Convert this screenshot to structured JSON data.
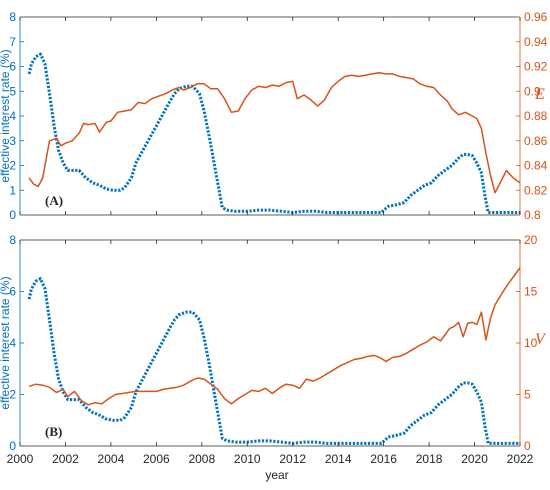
{
  "colors": {
    "rate": "#0072BD",
    "right": "#D95319",
    "axis": "#262626",
    "rateAxis": "#0072BD",
    "rightAxis": "#D95319"
  },
  "chart_data": [
    {
      "type": "line",
      "panel_label": "(A)",
      "xlabel": "",
      "ylabel_left": "effective interest rate (%)",
      "ylabel_right": "E",
      "xlim": [
        2000,
        2022
      ],
      "ylim_left": [
        0,
        8
      ],
      "ylim_right": [
        0.8,
        0.96
      ],
      "x_ticks": [
        2000,
        2002,
        2004,
        2006,
        2008,
        2010,
        2012,
        2014,
        2016,
        2018,
        2020,
        2022
      ],
      "yticks_left": [
        "0",
        "1",
        "2",
        "3",
        "4",
        "5",
        "6",
        "7",
        "8"
      ],
      "yticks_right": [
        "0.8",
        "0.82",
        "0.84",
        "0.86",
        "0.88",
        "0.9",
        "0.92",
        "0.94",
        "0.96"
      ],
      "series": [
        {
          "axis": "left",
          "style": "dotted",
          "x": [
            2000.4,
            2000.5,
            2000.7,
            2000.9,
            2001.1,
            2001.3,
            2001.5,
            2001.7,
            2001.9,
            2002.1,
            2002.3,
            2002.6,
            2002.9,
            2003.2,
            2003.5,
            2003.8,
            2004.1,
            2004.4,
            2004.6,
            2004.9,
            2005.1,
            2005.4,
            2005.7,
            2006.0,
            2006.3,
            2006.6,
            2006.8,
            2007.0,
            2007.3,
            2007.6,
            2007.9,
            2008.1,
            2008.3,
            2008.5,
            2008.7,
            2008.9,
            2009.1,
            2009.5,
            2010.0,
            2010.5,
            2011.0,
            2011.5,
            2012.0,
            2012.5,
            2013.0,
            2013.5,
            2014.0,
            2014.5,
            2015.0,
            2015.5,
            2015.9,
            2016.2,
            2016.5,
            2016.9,
            2017.2,
            2017.5,
            2017.8,
            2018.1,
            2018.4,
            2018.7,
            2019.0,
            2019.3,
            2019.5,
            2019.7,
            2019.9,
            2020.1,
            2020.3,
            2020.45,
            2020.6,
            2021.0,
            2021.5,
            2022.0
          ],
          "y": [
            5.7,
            6.1,
            6.4,
            6.5,
            6.1,
            4.9,
            3.6,
            2.6,
            2.1,
            1.8,
            1.8,
            1.8,
            1.5,
            1.3,
            1.2,
            1.05,
            1.0,
            1.0,
            1.1,
            1.5,
            2.1,
            2.6,
            3.1,
            3.6,
            4.1,
            4.6,
            4.9,
            5.1,
            5.2,
            5.2,
            4.9,
            4.2,
            3.3,
            2.3,
            1.3,
            0.3,
            0.2,
            0.15,
            0.15,
            0.2,
            0.2,
            0.15,
            0.1,
            0.15,
            0.15,
            0.1,
            0.1,
            0.1,
            0.1,
            0.1,
            0.1,
            0.35,
            0.4,
            0.5,
            0.8,
            1.0,
            1.2,
            1.3,
            1.6,
            1.8,
            2.0,
            2.3,
            2.45,
            2.45,
            2.4,
            2.1,
            1.7,
            0.8,
            0.1,
            0.1,
            0.1,
            0.1
          ]
        },
        {
          "axis": "right",
          "style": "solid",
          "x": [
            2000.4,
            2000.6,
            2000.8,
            2001.0,
            2001.3,
            2001.6,
            2001.8,
            2002.0,
            2002.3,
            2002.6,
            2002.8,
            2003.0,
            2003.3,
            2003.5,
            2003.8,
            2004.0,
            2004.3,
            2004.6,
            2004.9,
            2005.2,
            2005.5,
            2005.8,
            2006.1,
            2006.4,
            2006.7,
            2007.0,
            2007.2,
            2007.5,
            2007.8,
            2008.1,
            2008.4,
            2008.7,
            2009.0,
            2009.3,
            2009.6,
            2009.9,
            2010.2,
            2010.5,
            2010.8,
            2011.1,
            2011.4,
            2011.7,
            2012.0,
            2012.2,
            2012.5,
            2012.8,
            2013.1,
            2013.4,
            2013.7,
            2014.0,
            2014.3,
            2014.6,
            2014.9,
            2015.2,
            2015.5,
            2015.8,
            2016.1,
            2016.4,
            2016.7,
            2017.0,
            2017.3,
            2017.6,
            2017.9,
            2018.2,
            2018.5,
            2018.8,
            2019.0,
            2019.3,
            2019.6,
            2019.9,
            2020.1,
            2020.3,
            2020.5,
            2020.7,
            2020.9,
            2021.1,
            2021.4,
            2021.7,
            2022.0
          ],
          "y": [
            0.83,
            0.825,
            0.823,
            0.83,
            0.86,
            0.862,
            0.856,
            0.858,
            0.86,
            0.866,
            0.874,
            0.873,
            0.874,
            0.867,
            0.875,
            0.876,
            0.883,
            0.884,
            0.885,
            0.891,
            0.89,
            0.894,
            0.896,
            0.898,
            0.901,
            0.903,
            0.901,
            0.903,
            0.906,
            0.906,
            0.902,
            0.902,
            0.894,
            0.883,
            0.884,
            0.894,
            0.901,
            0.904,
            0.903,
            0.905,
            0.904,
            0.907,
            0.908,
            0.894,
            0.897,
            0.893,
            0.888,
            0.893,
            0.903,
            0.908,
            0.912,
            0.913,
            0.912,
            0.913,
            0.914,
            0.915,
            0.914,
            0.914,
            0.912,
            0.911,
            0.91,
            0.906,
            0.904,
            0.903,
            0.897,
            0.892,
            0.886,
            0.881,
            0.883,
            0.88,
            0.878,
            0.87,
            0.85,
            0.832,
            0.818,
            0.825,
            0.836,
            0.83,
            0.826
          ]
        }
      ]
    },
    {
      "type": "line",
      "panel_label": "(B)",
      "xlabel": "year",
      "ylabel_left": "effective interest rate (%)",
      "ylabel_right": "V",
      "xlim": [
        2000,
        2022
      ],
      "ylim_left": [
        0,
        8
      ],
      "ylim_right": [
        0,
        20
      ],
      "x_ticks": [
        2000,
        2002,
        2004,
        2006,
        2008,
        2010,
        2012,
        2014,
        2016,
        2018,
        2020,
        2022
      ],
      "xticks_labels": [
        "2000",
        "2002",
        "2004",
        "2006",
        "2008",
        "2010",
        "2012",
        "2014",
        "2016",
        "2018",
        "2020",
        "2022"
      ],
      "yticks_left": [
        "0",
        "2",
        "4",
        "6",
        "8"
      ],
      "yticks_right": [
        "0",
        "5",
        "10",
        "15",
        "20"
      ],
      "series": [
        {
          "axis": "left",
          "style": "dotted",
          "x": [
            2000.4,
            2000.5,
            2000.7,
            2000.9,
            2001.1,
            2001.3,
            2001.5,
            2001.7,
            2001.9,
            2002.1,
            2002.3,
            2002.6,
            2002.9,
            2003.2,
            2003.5,
            2003.8,
            2004.1,
            2004.4,
            2004.6,
            2004.9,
            2005.1,
            2005.4,
            2005.7,
            2006.0,
            2006.3,
            2006.6,
            2006.8,
            2007.0,
            2007.3,
            2007.6,
            2007.9,
            2008.1,
            2008.3,
            2008.5,
            2008.7,
            2008.9,
            2009.1,
            2009.5,
            2010.0,
            2010.5,
            2011.0,
            2011.5,
            2012.0,
            2012.5,
            2013.0,
            2013.5,
            2014.0,
            2014.5,
            2015.0,
            2015.5,
            2015.9,
            2016.2,
            2016.5,
            2016.9,
            2017.2,
            2017.5,
            2017.8,
            2018.1,
            2018.4,
            2018.7,
            2019.0,
            2019.3,
            2019.5,
            2019.7,
            2019.9,
            2020.1,
            2020.3,
            2020.45,
            2020.6,
            2021.0,
            2021.5,
            2022.0
          ],
          "y": [
            5.7,
            6.1,
            6.4,
            6.5,
            6.1,
            4.9,
            3.6,
            2.6,
            2.1,
            1.8,
            1.8,
            1.8,
            1.5,
            1.3,
            1.2,
            1.05,
            1.0,
            1.0,
            1.1,
            1.5,
            2.1,
            2.6,
            3.1,
            3.6,
            4.1,
            4.6,
            4.9,
            5.1,
            5.2,
            5.2,
            4.9,
            4.2,
            3.3,
            2.3,
            1.3,
            0.3,
            0.2,
            0.15,
            0.15,
            0.2,
            0.2,
            0.15,
            0.1,
            0.15,
            0.15,
            0.1,
            0.1,
            0.1,
            0.1,
            0.1,
            0.1,
            0.35,
            0.4,
            0.5,
            0.8,
            1.0,
            1.2,
            1.3,
            1.6,
            1.8,
            2.0,
            2.3,
            2.45,
            2.45,
            2.4,
            2.1,
            1.7,
            0.8,
            0.1,
            0.1,
            0.1,
            0.1
          ]
        },
        {
          "axis": "right",
          "style": "solid",
          "x": [
            2000.4,
            2000.7,
            2001.0,
            2001.3,
            2001.6,
            2001.9,
            2002.1,
            2002.4,
            2002.7,
            2003.0,
            2003.3,
            2003.6,
            2003.9,
            2004.2,
            2004.5,
            2004.8,
            2005.1,
            2005.4,
            2005.7,
            2006.0,
            2006.3,
            2006.6,
            2006.9,
            2007.2,
            2007.5,
            2007.8,
            2008.1,
            2008.4,
            2008.7,
            2009.0,
            2009.3,
            2009.6,
            2009.9,
            2010.2,
            2010.5,
            2010.8,
            2011.1,
            2011.4,
            2011.7,
            2012.0,
            2012.3,
            2012.6,
            2012.9,
            2013.2,
            2013.5,
            2013.8,
            2014.1,
            2014.4,
            2014.7,
            2015.0,
            2015.3,
            2015.6,
            2015.9,
            2016.1,
            2016.4,
            2016.7,
            2017.0,
            2017.3,
            2017.6,
            2017.9,
            2018.2,
            2018.5,
            2018.7,
            2018.9,
            2019.1,
            2019.3,
            2019.5,
            2019.7,
            2019.9,
            2020.1,
            2020.3,
            2020.5,
            2020.7,
            2020.9,
            2021.2,
            2021.5,
            2021.8,
            2022.0
          ],
          "y": [
            5.8,
            6.0,
            5.9,
            5.7,
            5.2,
            5.5,
            4.8,
            5.3,
            4.4,
            4.0,
            4.2,
            4.1,
            4.6,
            5.0,
            5.1,
            5.2,
            5.3,
            5.3,
            5.3,
            5.3,
            5.5,
            5.6,
            5.7,
            5.9,
            6.3,
            6.6,
            6.5,
            6.0,
            5.5,
            4.6,
            4.1,
            4.6,
            5.0,
            5.4,
            5.3,
            5.6,
            5.1,
            5.6,
            6.0,
            5.9,
            5.6,
            6.5,
            6.3,
            6.6,
            7.0,
            7.4,
            7.8,
            8.1,
            8.4,
            8.5,
            8.7,
            8.8,
            8.5,
            8.2,
            8.6,
            8.7,
            9.0,
            9.4,
            9.8,
            10.1,
            10.6,
            10.2,
            10.8,
            11.4,
            11.6,
            12.0,
            10.6,
            11.9,
            12.0,
            11.8,
            13.0,
            10.3,
            12.4,
            13.7,
            14.8,
            15.8,
            16.7,
            17.3
          ]
        }
      ]
    }
  ]
}
